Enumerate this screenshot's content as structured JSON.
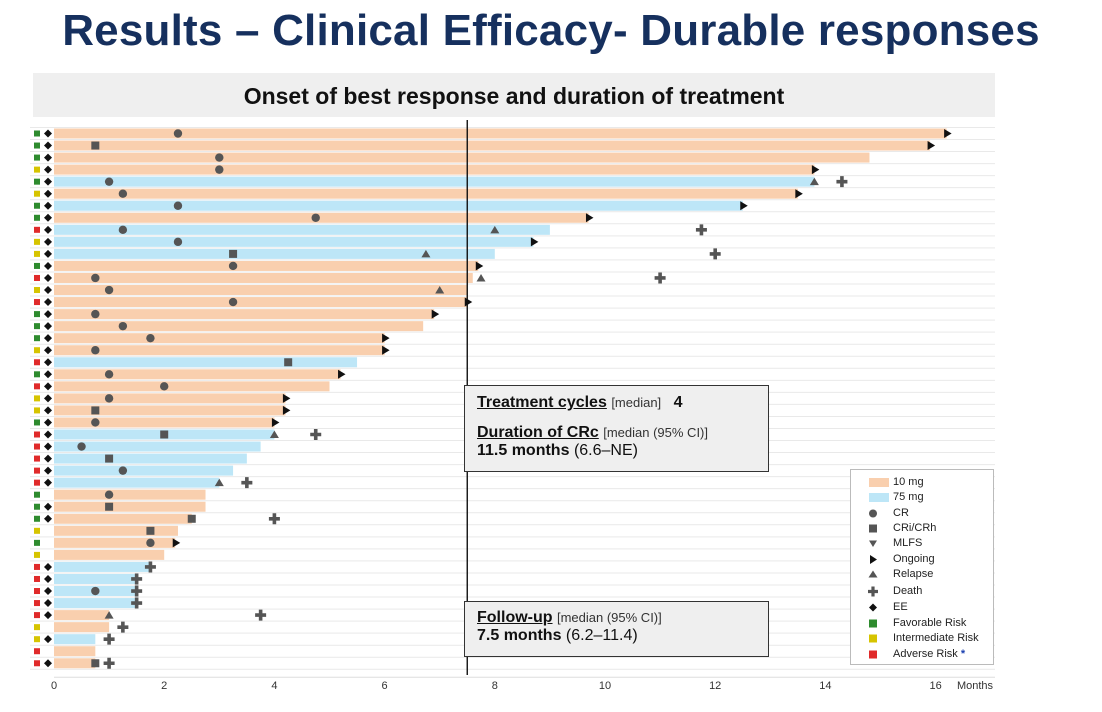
{
  "title": "Results – Clinical Efficacy- Durable responses",
  "chart_data": {
    "type": "swimmer",
    "title": "Onset of best response and duration of treatment",
    "xlabel": "Months",
    "xlim": [
      0,
      17
    ],
    "xticks": [
      0,
      2,
      4,
      6,
      8,
      10,
      12,
      14,
      16
    ],
    "median_line_x": 7.5,
    "colors": {
      "bar_10mg": "#f9cfae",
      "bar_75mg": "#bde6f7",
      "favorable": "#2e8b2e",
      "intermediate": "#d6c400",
      "adverse": "#e02a2a",
      "marker": "#555555",
      "ee": "#111111"
    },
    "patients": [
      {
        "risk": "favorable",
        "ee": true,
        "dose": "10 mg",
        "duration": 16.2,
        "end": "ongoing",
        "resp": {
          "type": "CR",
          "at": 2.25
        }
      },
      {
        "risk": "favorable",
        "ee": true,
        "dose": "10 mg",
        "duration": 15.9,
        "end": "ongoing",
        "resp": {
          "type": "CRi/CRh",
          "at": 0.75
        }
      },
      {
        "risk": "favorable",
        "ee": true,
        "dose": "10 mg",
        "duration": 14.8,
        "resp": {
          "type": "CR",
          "at": 3.0
        }
      },
      {
        "risk": "intermediate",
        "ee": true,
        "dose": "10 mg",
        "duration": 13.8,
        "end": "ongoing",
        "resp": {
          "type": "CR",
          "at": 3.0
        }
      },
      {
        "risk": "favorable",
        "ee": true,
        "dose": "75 mg",
        "duration": 13.8,
        "resp": {
          "type": "CR",
          "at": 1.0
        },
        "relapse": 13.8,
        "death": 14.3
      },
      {
        "risk": "intermediate",
        "ee": true,
        "dose": "10 mg",
        "duration": 13.5,
        "end": "ongoing",
        "resp": {
          "type": "CR",
          "at": 1.25
        }
      },
      {
        "risk": "favorable",
        "ee": true,
        "dose": "75 mg",
        "duration": 12.5,
        "end": "ongoing",
        "resp": {
          "type": "CR",
          "at": 2.25
        }
      },
      {
        "risk": "favorable",
        "ee": true,
        "dose": "10 mg",
        "duration": 9.7,
        "end": "ongoing",
        "resp": {
          "type": "CR",
          "at": 4.75
        }
      },
      {
        "risk": "adverse",
        "ee": true,
        "dose": "75 mg",
        "duration": 9.0,
        "resp": {
          "type": "CR",
          "at": 1.25
        },
        "relapse": 8.0,
        "death": 11.75
      },
      {
        "risk": "intermediate",
        "ee": true,
        "dose": "75 mg",
        "duration": 8.7,
        "end": "ongoing",
        "resp": {
          "type": "CR",
          "at": 2.25
        }
      },
      {
        "risk": "intermediate",
        "ee": true,
        "dose": "75 mg",
        "duration": 8.0,
        "resp": {
          "type": "CRi/CRh",
          "at": 3.25
        },
        "relapse": 6.75,
        "death": 12.0
      },
      {
        "risk": "favorable",
        "ee": true,
        "dose": "10 mg",
        "duration": 7.7,
        "end": "ongoing",
        "resp": {
          "type": "CR",
          "at": 3.25
        }
      },
      {
        "risk": "adverse",
        "ee": true,
        "dose": "10 mg",
        "duration": 7.6,
        "resp": {
          "type": "CR",
          "at": 0.75
        },
        "relapse": 7.75,
        "death": 11.0
      },
      {
        "risk": "intermediate",
        "ee": true,
        "dose": "10 mg",
        "duration": 7.5,
        "resp": {
          "type": "CR",
          "at": 1.0
        },
        "relapse": 7.0
      },
      {
        "risk": "adverse",
        "ee": true,
        "dose": "10 mg",
        "duration": 7.5,
        "end": "ongoing",
        "resp": {
          "type": "CR",
          "at": 3.25
        }
      },
      {
        "risk": "favorable",
        "ee": true,
        "dose": "10 mg",
        "duration": 6.9,
        "end": "ongoing",
        "resp": {
          "type": "CR",
          "at": 0.75
        }
      },
      {
        "risk": "favorable",
        "ee": true,
        "dose": "10 mg",
        "duration": 6.7,
        "resp": {
          "type": "CR",
          "at": 1.25
        }
      },
      {
        "risk": "favorable",
        "ee": true,
        "dose": "10 mg",
        "duration": 6.0,
        "end": "ongoing",
        "resp": {
          "type": "CR",
          "at": 1.75
        }
      },
      {
        "risk": "intermediate",
        "ee": true,
        "dose": "10 mg",
        "duration": 6.0,
        "end": "ongoing",
        "resp": {
          "type": "CR",
          "at": 0.75
        }
      },
      {
        "risk": "adverse",
        "ee": true,
        "dose": "75 mg",
        "duration": 5.5,
        "resp": {
          "type": "CRi/CRh",
          "at": 4.25
        }
      },
      {
        "risk": "favorable",
        "ee": true,
        "dose": "10 mg",
        "duration": 5.2,
        "end": "ongoing",
        "resp": {
          "type": "CR",
          "at": 1.0
        }
      },
      {
        "risk": "adverse",
        "ee": true,
        "dose": "10 mg",
        "duration": 5.0,
        "resp": {
          "type": "CR",
          "at": 2.0
        }
      },
      {
        "risk": "intermediate",
        "ee": true,
        "dose": "10 mg",
        "duration": 4.2,
        "end": "ongoing",
        "resp": {
          "type": "CR",
          "at": 1.0
        }
      },
      {
        "risk": "intermediate",
        "ee": true,
        "dose": "10 mg",
        "duration": 4.2,
        "end": "ongoing",
        "resp": {
          "type": "CRi/CRh",
          "at": 0.75
        }
      },
      {
        "risk": "favorable",
        "ee": true,
        "dose": "10 mg",
        "duration": 4.0,
        "end": "ongoing",
        "resp": {
          "type": "CR",
          "at": 0.75
        }
      },
      {
        "risk": "adverse",
        "ee": true,
        "dose": "75 mg",
        "duration": 4.0,
        "resp": {
          "type": "CRi/CRh",
          "at": 2.0
        },
        "relapse": 4.0,
        "death": 4.75
      },
      {
        "risk": "adverse",
        "ee": true,
        "dose": "75 mg",
        "duration": 3.75,
        "resp": {
          "type": "CR",
          "at": 0.5
        }
      },
      {
        "risk": "adverse",
        "ee": true,
        "dose": "75 mg",
        "duration": 3.5,
        "resp": {
          "type": "CRi/CRh",
          "at": 1.0
        }
      },
      {
        "risk": "adverse",
        "ee": true,
        "dose": "75 mg",
        "duration": 3.25,
        "resp": {
          "type": "CR",
          "at": 1.25
        }
      },
      {
        "risk": "adverse",
        "ee": true,
        "dose": "75 mg",
        "duration": 3.0,
        "resp": null,
        "relapse": 3.0,
        "death": 3.5
      },
      {
        "risk": "favorable",
        "ee": false,
        "dose": "10 mg",
        "duration": 2.75,
        "resp": {
          "type": "CR",
          "at": 1.0
        }
      },
      {
        "risk": "favorable",
        "ee": true,
        "dose": "10 mg",
        "duration": 2.75,
        "resp": {
          "type": "CRi/CRh",
          "at": 1.0
        }
      },
      {
        "risk": "favorable",
        "ee": true,
        "dose": "10 mg",
        "duration": 2.5,
        "resp": {
          "type": "CRi/CRh",
          "at": 2.5
        },
        "death": 4.0
      },
      {
        "risk": "intermediate",
        "ee": false,
        "dose": "10 mg",
        "duration": 2.25,
        "resp": {
          "type": "CRi/CRh",
          "at": 1.75
        }
      },
      {
        "risk": "favorable",
        "ee": false,
        "dose": "10 mg",
        "duration": 2.2,
        "end": "ongoing",
        "resp": {
          "type": "CR",
          "at": 1.75
        }
      },
      {
        "risk": "intermediate",
        "ee": false,
        "dose": "10 mg",
        "duration": 2.0,
        "resp": null
      },
      {
        "risk": "adverse",
        "ee": true,
        "dose": "75 mg",
        "duration": 1.75,
        "resp": null,
        "death": 1.75
      },
      {
        "risk": "adverse",
        "ee": true,
        "dose": "75 mg",
        "duration": 1.5,
        "resp": null,
        "death": 1.5
      },
      {
        "risk": "adverse",
        "ee": true,
        "dose": "75 mg",
        "duration": 1.5,
        "resp": {
          "type": "CR",
          "at": 0.75
        },
        "death": 1.5
      },
      {
        "risk": "adverse",
        "ee": true,
        "dose": "75 mg",
        "duration": 1.5,
        "resp": null,
        "death": 1.5
      },
      {
        "risk": "adverse",
        "ee": true,
        "dose": "10 mg",
        "duration": 1.0,
        "resp": null,
        "relapse": 1.0,
        "death": 3.75
      },
      {
        "risk": "intermediate",
        "ee": false,
        "dose": "10 mg",
        "duration": 1.0,
        "resp": null,
        "death": 1.25
      },
      {
        "risk": "intermediate",
        "ee": true,
        "dose": "75 mg",
        "duration": 0.75,
        "resp": null,
        "death": 1.0
      },
      {
        "risk": "adverse",
        "ee": false,
        "dose": "10 mg",
        "duration": 0.75,
        "resp": null
      },
      {
        "risk": "adverse",
        "ee": true,
        "dose": "10 mg",
        "duration": 0.75,
        "resp": {
          "type": "CRi/CRh",
          "at": 0.75
        },
        "death": 1.0
      }
    ],
    "legend": [
      {
        "key": "bar10",
        "label": "10 mg"
      },
      {
        "key": "bar75",
        "label": "75 mg"
      },
      {
        "key": "cr",
        "label": "CR"
      },
      {
        "key": "cri",
        "label": "CRi/CRh"
      },
      {
        "key": "mlfs",
        "label": "MLFS"
      },
      {
        "key": "ongoing",
        "label": "Ongoing"
      },
      {
        "key": "relapse",
        "label": "Relapse"
      },
      {
        "key": "death",
        "label": "Death"
      },
      {
        "key": "ee",
        "label": "EE"
      },
      {
        "key": "favorable",
        "label": "Favorable Risk"
      },
      {
        "key": "intermediate",
        "label": "Intermediate Risk"
      },
      {
        "key": "adverse",
        "label": "Adverse Risk"
      }
    ],
    "legend_asterisk": "*"
  },
  "box1": {
    "cycles_label": "Treatment cycles",
    "cycles_qual": "[median]",
    "cycles_value": "4",
    "crc_label": "Duration of CRc",
    "crc_qual": "[median (95% CI)]",
    "crc_value": "11.5 months",
    "crc_ci": "(6.6–NE)"
  },
  "box2": {
    "fu_label": "Follow-up",
    "fu_qual": "[median (95% CI)]",
    "fu_value": "7.5 months",
    "fu_ci": "(6.2–11.4)"
  }
}
